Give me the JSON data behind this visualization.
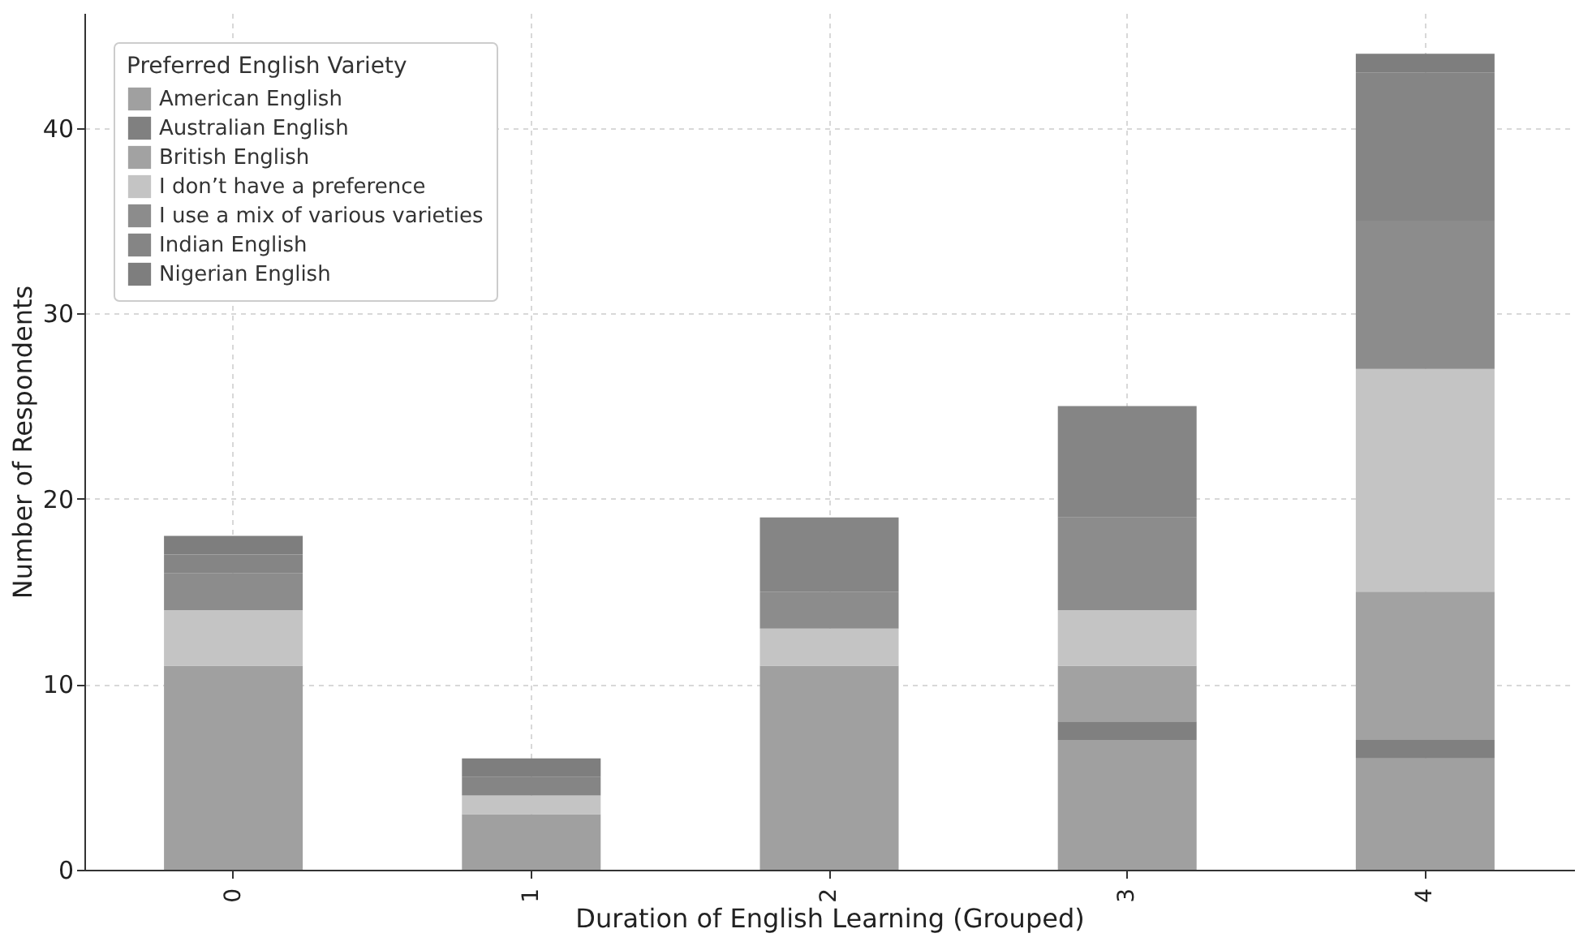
{
  "chart_data": {
    "type": "bar",
    "stacked": true,
    "xlabel": "Duration of English Learning (Grouped)",
    "ylabel": "Number of Respondents",
    "legend_title": "Preferred English Variety",
    "categories": [
      "0",
      "1",
      "2",
      "3",
      "4"
    ],
    "series": [
      {
        "name": "American English",
        "color": "#a0a0a0",
        "values": [
          11,
          3,
          11,
          7,
          6
        ]
      },
      {
        "name": "Australian English",
        "color": "#808080",
        "values": [
          0,
          0,
          0,
          1,
          1
        ]
      },
      {
        "name": "British English",
        "color": "#a2a2a2",
        "values": [
          0,
          0,
          0,
          3,
          8
        ]
      },
      {
        "name": "I don’t have a preference",
        "color": "#c4c4c4",
        "values": [
          3,
          1,
          2,
          3,
          12
        ]
      },
      {
        "name": "I use a mix of various varieties",
        "color": "#8c8c8c",
        "values": [
          2,
          0,
          2,
          5,
          8
        ]
      },
      {
        "name": "Indian English",
        "color": "#858585",
        "values": [
          1,
          1,
          4,
          6,
          8
        ]
      },
      {
        "name": "Nigerian English",
        "color": "#7e7e7e",
        "values": [
          1,
          1,
          0,
          0,
          1
        ]
      }
    ],
    "ylim": [
      0,
      46.2
    ],
    "yticks": [
      0,
      10,
      20,
      30,
      40
    ],
    "grid": true,
    "legend": "top left"
  }
}
